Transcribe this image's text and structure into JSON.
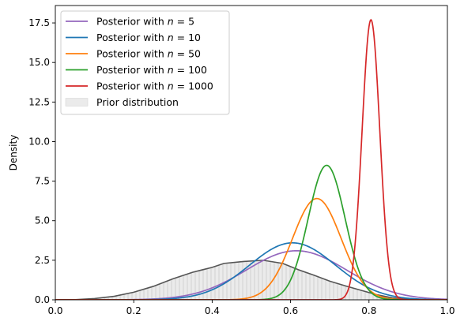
{
  "chart_data": {
    "type": "line",
    "title": "",
    "xlabel": "",
    "ylabel": "Density",
    "xlim": [
      0.0,
      1.0
    ],
    "ylim": [
      0.0,
      18.6
    ],
    "grid": false,
    "legend_position": "upper-left",
    "x_ticks": [
      0.0,
      0.2,
      0.4,
      0.6,
      0.8,
      1.0
    ],
    "x_tick_labels": [
      "0.0",
      "0.2",
      "0.4",
      "0.6",
      "0.8",
      "1.0"
    ],
    "y_ticks": [
      0.0,
      2.5,
      5.0,
      7.5,
      10.0,
      12.5,
      15.0,
      17.5
    ],
    "y_tick_labels": [
      "0.0",
      "2.5",
      "5.0",
      "7.5",
      "10.0",
      "12.5",
      "15.0",
      "17.5"
    ],
    "series": [
      {
        "name": "Posterior with n = 5",
        "legend_prefix": "Posterior with ",
        "legend_var": "n",
        "legend_suffix": " = 5",
        "color": "#9467bd",
        "distribution": "normal",
        "mean": 0.615,
        "sd": 0.128,
        "peak": 3.1
      },
      {
        "name": "Posterior with n = 10",
        "legend_prefix": "Posterior with ",
        "legend_var": "n",
        "legend_suffix": " = 10",
        "color": "#1f77b4",
        "distribution": "normal",
        "mean": 0.605,
        "sd": 0.11,
        "peak": 3.6
      },
      {
        "name": "Posterior with n = 50",
        "legend_prefix": "Posterior with ",
        "legend_var": "n",
        "legend_suffix": " = 50",
        "color": "#ff7f0e",
        "distribution": "normal",
        "mean": 0.667,
        "sd": 0.062,
        "peak": 6.4
      },
      {
        "name": "Posterior with n = 100",
        "legend_prefix": "Posterior with ",
        "legend_var": "n",
        "legend_suffix": " = 100",
        "color": "#2ca02c",
        "distribution": "normal",
        "mean": 0.692,
        "sd": 0.047,
        "peak": 8.5
      },
      {
        "name": "Posterior with n = 1000",
        "legend_prefix": "Posterior with ",
        "legend_var": "n",
        "legend_suffix": " = 1000",
        "color": "#d62728",
        "distribution": "normal",
        "mean": 0.805,
        "sd": 0.0225,
        "peak": 17.7
      }
    ],
    "prior": {
      "name": "Prior distribution",
      "legend_label": "Prior distribution",
      "fill_color": "#ebebeb",
      "hatch_color": "#c8c8c8",
      "line_color": "#555555",
      "points": [
        [
          0.0,
          0.0
        ],
        [
          0.05,
          0.01
        ],
        [
          0.1,
          0.08
        ],
        [
          0.15,
          0.22
        ],
        [
          0.2,
          0.48
        ],
        [
          0.25,
          0.85
        ],
        [
          0.3,
          1.33
        ],
        [
          0.35,
          1.74
        ],
        [
          0.4,
          2.05
        ],
        [
          0.43,
          2.3
        ],
        [
          0.48,
          2.42
        ],
        [
          0.53,
          2.5
        ],
        [
          0.58,
          2.3
        ],
        [
          0.62,
          1.9
        ],
        [
          0.66,
          1.55
        ],
        [
          0.7,
          1.18
        ],
        [
          0.74,
          0.88
        ],
        [
          0.78,
          0.6
        ],
        [
          0.82,
          0.32
        ],
        [
          0.86,
          0.12
        ],
        [
          0.9,
          0.04
        ],
        [
          0.95,
          0.01
        ],
        [
          1.0,
          0.0
        ]
      ]
    }
  }
}
